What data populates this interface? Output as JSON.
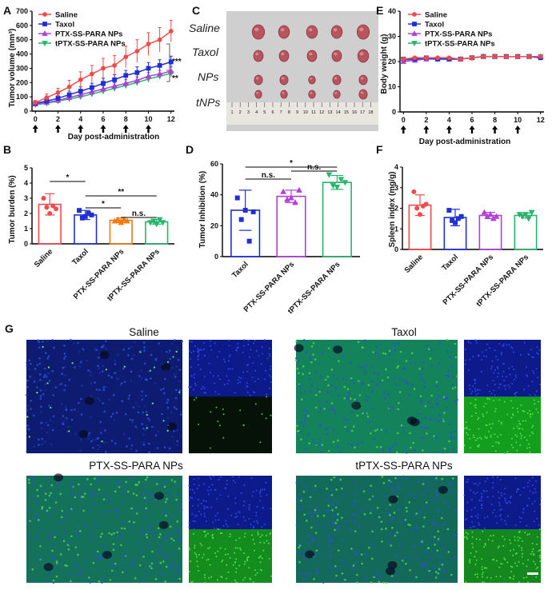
{
  "panel_letters": {
    "a": "A",
    "b": "B",
    "c": "C",
    "d": "D",
    "e": "E",
    "f": "F",
    "g": "G"
  },
  "colors": {
    "saline": "#f04b4b",
    "taxol": "#1f2fd4",
    "ptx": "#b040d8",
    "tptx": "#26b56a",
    "orange": "#f07a10"
  },
  "chart_data": [
    {
      "id": "A",
      "type": "line",
      "title": "",
      "xlabel": "Day post-administration",
      "ylabel": "Tumor volume (mm³)",
      "x": [
        0,
        1,
        2,
        3,
        4,
        5,
        6,
        7,
        8,
        9,
        10,
        11,
        12
      ],
      "xticks": [
        "0",
        "2",
        "4",
        "6",
        "8",
        "10",
        "12"
      ],
      "yticks": [
        "0",
        "100",
        "200",
        "300",
        "400",
        "500",
        "600",
        "700"
      ],
      "ylim": [
        0,
        700
      ],
      "series": [
        {
          "name": "Saline",
          "marker": "circle",
          "values": [
            60,
            95,
            130,
            170,
            220,
            260,
            300,
            320,
            380,
            420,
            470,
            500,
            560
          ],
          "errors": [
            15,
            25,
            30,
            45,
            55,
            60,
            70,
            70,
            75,
            80,
            80,
            85,
            75
          ]
        },
        {
          "name": "Taxol",
          "marker": "square",
          "values": [
            55,
            70,
            90,
            115,
            140,
            165,
            195,
            220,
            250,
            270,
            300,
            320,
            345
          ],
          "errors": [
            10,
            15,
            18,
            25,
            30,
            30,
            35,
            35,
            35,
            40,
            40,
            40,
            40
          ]
        },
        {
          "name": "PTX-SS-PARA NPs",
          "marker": "triangle-up",
          "values": [
            50,
            60,
            75,
            95,
            115,
            135,
            155,
            175,
            195,
            215,
            245,
            260,
            280
          ],
          "errors": [
            10,
            12,
            15,
            15,
            20,
            20,
            20,
            25,
            25,
            25,
            25,
            25,
            30
          ]
        },
        {
          "name": "tPTX-SS-PARA NPs",
          "marker": "triangle-down",
          "values": [
            45,
            55,
            70,
            85,
            100,
            120,
            140,
            160,
            180,
            200,
            225,
            245,
            265
          ],
          "errors": [
            8,
            10,
            12,
            15,
            15,
            18,
            18,
            20,
            20,
            20,
            22,
            22,
            25
          ]
        }
      ],
      "dosing_days": [
        0,
        2,
        4,
        6,
        8,
        10
      ],
      "annotations": [
        "***",
        "**"
      ]
    },
    {
      "id": "B",
      "type": "bar",
      "title": "",
      "ylabel": "Tumor  burden (%)",
      "categories": [
        "Saline",
        "Taxol",
        "PTX-SS-PARA NPs",
        "tPTX-SS-PARA NPs"
      ],
      "values": [
        2.6,
        1.9,
        1.55,
        1.45
      ],
      "errors": [
        0.7,
        0.3,
        0.15,
        0.15
      ],
      "points": [
        [
          3.0,
          2.4,
          2.0,
          2.5,
          2.3
        ],
        [
          2.2,
          1.7,
          1.8,
          2.0,
          1.9
        ],
        [
          1.5,
          1.6,
          1.4,
          1.6,
          1.5
        ],
        [
          1.4,
          1.5,
          1.3,
          1.6,
          1.4
        ]
      ],
      "yticks": [
        "0",
        "1",
        "2",
        "3",
        "4",
        "5"
      ],
      "ylim": [
        0,
        5
      ],
      "significance": [
        {
          "from": 0,
          "to": 1,
          "label": "*"
        },
        {
          "from": 1,
          "to": 2,
          "label": "*"
        },
        {
          "from": 1,
          "to": 3,
          "label": "**"
        },
        {
          "from": 2,
          "to": 3,
          "label": "n.s."
        }
      ]
    },
    {
      "id": "D",
      "type": "bar",
      "title": "",
      "ylabel": "Tumor Inhibition (%)",
      "categories": [
        "Taxol",
        "PTX-SS-PARA NPs",
        "tPTX-SS-PARA NPs"
      ],
      "values": [
        30,
        39,
        48
      ],
      "errors": [
        13,
        4,
        4.5
      ],
      "points": [
        [
          38,
          24,
          30,
          10,
          29
        ],
        [
          42,
          37,
          38,
          35,
          43
        ],
        [
          53,
          46,
          45,
          50,
          48
        ]
      ],
      "yticks": [
        "0",
        "20",
        "40",
        "60"
      ],
      "ylim": [
        0,
        60
      ],
      "significance": [
        {
          "from": 0,
          "to": 2,
          "label": "*"
        },
        {
          "from": 0,
          "to": 1,
          "label": "n.s."
        },
        {
          "from": 1,
          "to": 2,
          "label": "n.s."
        }
      ]
    },
    {
      "id": "E",
      "type": "line",
      "title": "",
      "xlabel": "Day post-administration",
      "ylabel": "Body weight (g)",
      "x": [
        0,
        1,
        2,
        3,
        4,
        5,
        6,
        7,
        8,
        9,
        10,
        11,
        12
      ],
      "xticks": [
        "0",
        "2",
        "4",
        "6",
        "8",
        "10",
        "12"
      ],
      "yticks": [
        "0",
        "10",
        "20",
        "30",
        "40"
      ],
      "ylim": [
        0,
        40
      ],
      "series": [
        {
          "name": "Saline",
          "marker": "circle",
          "values": [
            21,
            21.5,
            21.5,
            21.5,
            21.5,
            21,
            21.5,
            22,
            22,
            22,
            22,
            22,
            22
          ]
        },
        {
          "name": "Taxol",
          "marker": "square",
          "values": [
            21,
            21,
            21.5,
            21,
            21,
            21,
            21.5,
            22,
            22,
            22,
            22,
            22,
            21.5
          ]
        },
        {
          "name": "PTX-SS-PARA NPs",
          "marker": "triangle-up",
          "values": [
            20,
            20.5,
            21,
            21,
            21,
            21,
            21.5,
            22,
            22,
            22,
            22,
            22,
            22
          ]
        },
        {
          "name": "tPTX-SS-PARA NPs",
          "marker": "triangle-down",
          "values": [
            20.5,
            21,
            21,
            21,
            21,
            21,
            21.5,
            22,
            22,
            22,
            22,
            22,
            22
          ]
        }
      ],
      "dosing_days": [
        0,
        2,
        4,
        6,
        8,
        10
      ]
    },
    {
      "id": "F",
      "type": "bar",
      "title": "",
      "ylabel": "Spleen index (mg/g)",
      "categories": [
        "Saline",
        "Taxol",
        "PTX-SS-PARA NPs",
        "tPTX-SS-PARA NPs"
      ],
      "values": [
        2.15,
        1.55,
        1.65,
        1.65
      ],
      "errors": [
        0.5,
        0.4,
        0.15,
        0.12
      ],
      "points": [
        [
          2.8,
          2.0,
          1.7,
          2.1,
          2.2
        ],
        [
          1.9,
          1.4,
          1.3,
          1.5,
          1.6
        ],
        [
          1.8,
          1.6,
          1.7,
          1.5,
          1.6
        ],
        [
          1.7,
          1.6,
          1.7,
          1.5,
          1.8
        ]
      ],
      "yticks": [
        "0",
        "1",
        "2",
        "3",
        "4"
      ],
      "ylim": [
        0,
        4
      ]
    }
  ],
  "panel_c": {
    "rows": [
      "Saline",
      "Taxol",
      "NPs",
      "tNPs"
    ],
    "ruler_ticks": [
      "1",
      "2",
      "3",
      "4",
      "5",
      "6",
      "7",
      "8",
      "9",
      "10",
      "11",
      "12",
      "13",
      "14",
      "15",
      "16",
      "17",
      "18"
    ]
  },
  "panel_g": {
    "titles": [
      "Saline",
      "Taxol",
      "PTX-SS-PARA NPs",
      "tPTX-SS-PARA NPs"
    ]
  }
}
